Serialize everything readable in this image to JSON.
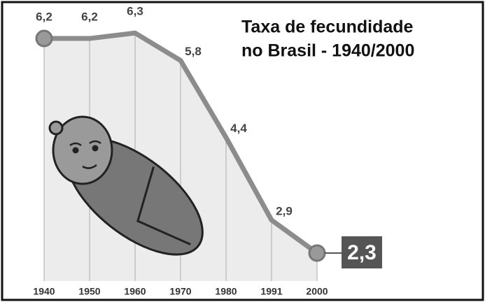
{
  "chart_data": {
    "type": "line",
    "title": [
      "Taxa de fecundidade",
      "no Brasil - 1940/2000"
    ],
    "categories": [
      "1940",
      "1950",
      "1960",
      "1970",
      "1980",
      "1991",
      "2000"
    ],
    "values": [
      6.2,
      6.2,
      6.3,
      5.8,
      4.4,
      2.9,
      2.3
    ],
    "value_labels": [
      "6,2",
      "6,2",
      "6,3",
      "5,8",
      "4,4",
      "2,9",
      "2,3"
    ],
    "color": "#8c8c8c",
    "grid": true
  }
}
